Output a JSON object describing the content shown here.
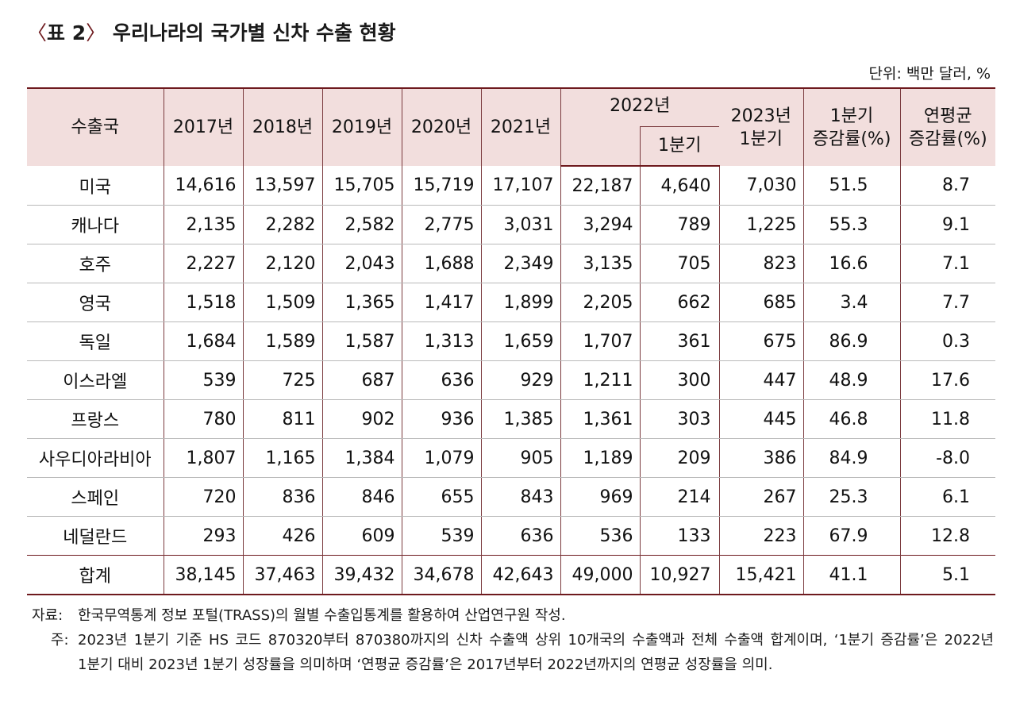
{
  "title": {
    "open": "〈",
    "number": "표 2",
    "close": "〉",
    "text": "우리나라의 국가별 신차 수출 현황"
  },
  "unit": "단위: 백만 달러, %",
  "table": {
    "headers": {
      "country": "수출국",
      "y2017": "2017년",
      "y2018": "2018년",
      "y2019": "2019년",
      "y2020": "2020년",
      "y2021": "2021년",
      "y2022": "2022년",
      "q1_2022": "1분기",
      "q1_2023": "2023년\n1분기",
      "q1_growth": "1분기\n증감률(%)",
      "cagr": "연평균\n증감률(%)"
    },
    "rows": [
      {
        "country": "미국",
        "values": [
          "14,616",
          "13,597",
          "15,705",
          "15,719",
          "17,107",
          "22,187",
          "4,640",
          "7,030",
          "51.5",
          "8.7"
        ]
      },
      {
        "country": "캐나다",
        "values": [
          "2,135",
          "2,282",
          "2,582",
          "2,775",
          "3,031",
          "3,294",
          "789",
          "1,225",
          "55.3",
          "9.1"
        ]
      },
      {
        "country": "호주",
        "values": [
          "2,227",
          "2,120",
          "2,043",
          "1,688",
          "2,349",
          "3,135",
          "705",
          "823",
          "16.6",
          "7.1"
        ]
      },
      {
        "country": "영국",
        "values": [
          "1,518",
          "1,509",
          "1,365",
          "1,417",
          "1,899",
          "2,205",
          "662",
          "685",
          "3.4",
          "7.7"
        ]
      },
      {
        "country": "독일",
        "values": [
          "1,684",
          "1,589",
          "1,587",
          "1,313",
          "1,659",
          "1,707",
          "361",
          "675",
          "86.9",
          "0.3"
        ]
      },
      {
        "country": "이스라엘",
        "values": [
          "539",
          "725",
          "687",
          "636",
          "929",
          "1,211",
          "300",
          "447",
          "48.9",
          "17.6"
        ]
      },
      {
        "country": "프랑스",
        "values": [
          "780",
          "811",
          "902",
          "936",
          "1,385",
          "1,361",
          "303",
          "445",
          "46.8",
          "11.8"
        ]
      },
      {
        "country": "사우디아라비아",
        "values": [
          "1,807",
          "1,165",
          "1,384",
          "1,079",
          "905",
          "1,189",
          "209",
          "386",
          "84.9",
          "-8.0"
        ]
      },
      {
        "country": "스페인",
        "values": [
          "720",
          "836",
          "846",
          "655",
          "843",
          "969",
          "214",
          "267",
          "25.3",
          "6.1"
        ]
      },
      {
        "country": "네덜란드",
        "values": [
          "293",
          "426",
          "609",
          "539",
          "636",
          "536",
          "133",
          "223",
          "67.9",
          "12.8"
        ]
      }
    ],
    "total": {
      "country": "합계",
      "values": [
        "38,145",
        "37,463",
        "39,432",
        "34,678",
        "42,643",
        "49,000",
        "10,927",
        "15,421",
        "41.1",
        "5.1"
      ]
    }
  },
  "notes": {
    "source_label": "자료:",
    "source_text": "한국무역통계 정보 포털(TRASS)의 월별 수출입통계를 활용하여 산업연구원 작성.",
    "footnote_label": "주:",
    "footnote_text": "2023년 1분기 기준 HS 코드 870320부터 870380까지의 신차 수출액 상위 10개국의 수출액과 전체 수출액 합계이며, ‘1분기 증감률’은 2022년 1분기 대비 2023년 1분기 성장률을 의미하며 ‘연평균 증감률’은 2017년부터 2022년까지의 연평균 성장률을 의미."
  }
}
